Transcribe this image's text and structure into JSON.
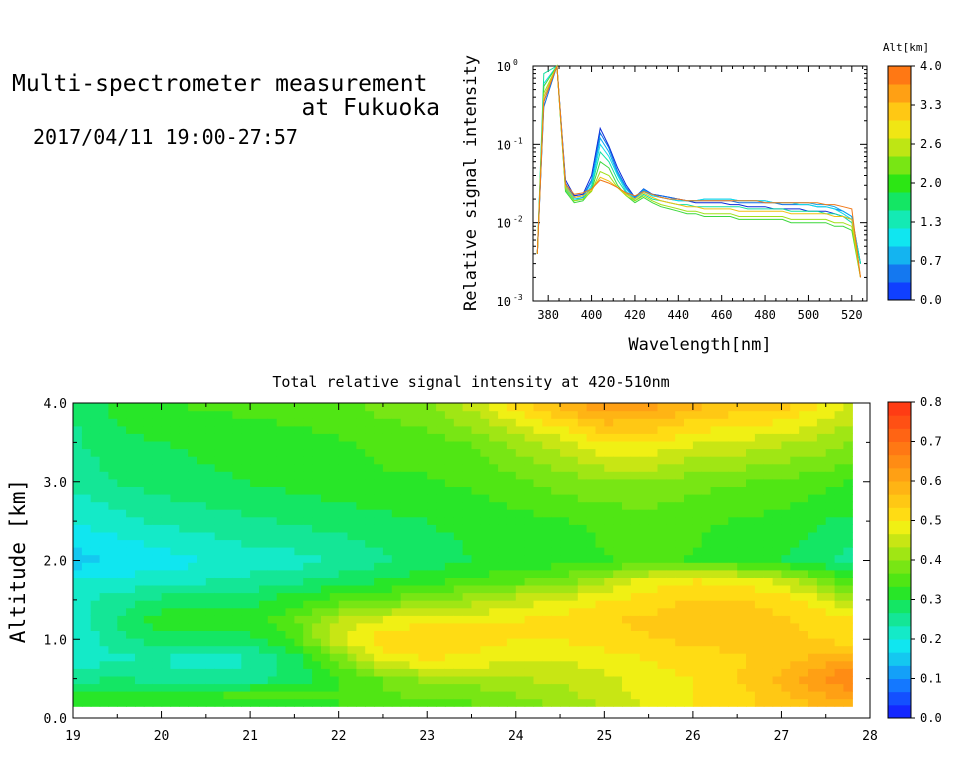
{
  "header": {
    "title_line1": "Multi-spectrometer measurement",
    "title_line2": "at Fukuoka",
    "subtitle": "2017/04/11 19:00-27:57"
  },
  "chart_data": [
    {
      "type": "line",
      "title": "",
      "xlabel": "Wavelength[nm]",
      "ylabel": "Relative signal intensity",
      "xlim": [
        373,
        527
      ],
      "ylim": [
        0.001,
        1
      ],
      "yscale": "log",
      "x_ticks": [
        380,
        400,
        420,
        440,
        460,
        480,
        500,
        520
      ],
      "y_ticks": [
        {
          "value": 0.001,
          "base": "10",
          "exp": "-3"
        },
        {
          "value": 0.01,
          "base": "10",
          "exp": "-2"
        },
        {
          "value": 0.1,
          "base": "10",
          "exp": "-1"
        },
        {
          "value": 1,
          "base": "10",
          "exp": "0"
        }
      ],
      "x": [
        375,
        378,
        384,
        388,
        392,
        396,
        400,
        404,
        408,
        412,
        416,
        420,
        424,
        428,
        432,
        436,
        440,
        444,
        448,
        452,
        456,
        460,
        464,
        468,
        472,
        476,
        480,
        484,
        488,
        492,
        496,
        500,
        504,
        508,
        512,
        516,
        520,
        524
      ],
      "series": [
        {
          "color": "#0a2ad8",
          "values": [
            0.004,
            0.35,
            1.0,
            0.035,
            0.022,
            0.023,
            0.04,
            0.16,
            0.095,
            0.05,
            0.03,
            0.021,
            0.027,
            0.023,
            0.022,
            0.021,
            0.02,
            0.019,
            0.018,
            0.018,
            0.018,
            0.018,
            0.017,
            0.017,
            0.016,
            0.016,
            0.016,
            0.015,
            0.015,
            0.015,
            0.015,
            0.014,
            0.014,
            0.014,
            0.013,
            0.012,
            0.011,
            0.003
          ]
        },
        {
          "color": "#0a6ee8",
          "values": [
            0.004,
            0.3,
            1.0,
            0.032,
            0.021,
            0.022,
            0.035,
            0.14,
            0.09,
            0.045,
            0.028,
            0.021,
            0.027,
            0.023,
            0.022,
            0.021,
            0.02,
            0.019,
            0.019,
            0.019,
            0.019,
            0.019,
            0.019,
            0.018,
            0.018,
            0.018,
            0.018,
            0.018,
            0.017,
            0.017,
            0.017,
            0.017,
            0.016,
            0.016,
            0.015,
            0.014,
            0.012,
            0.003
          ]
        },
        {
          "color": "#0aa8f0",
          "values": [
            0.004,
            0.4,
            1.0,
            0.03,
            0.02,
            0.021,
            0.033,
            0.12,
            0.08,
            0.042,
            0.027,
            0.02,
            0.026,
            0.022,
            0.021,
            0.02,
            0.019,
            0.019,
            0.019,
            0.02,
            0.02,
            0.02,
            0.02,
            0.019,
            0.019,
            0.019,
            0.019,
            0.018,
            0.018,
            0.018,
            0.018,
            0.018,
            0.017,
            0.017,
            0.016,
            0.014,
            0.012,
            0.003
          ]
        },
        {
          "color": "#10dcea",
          "values": [
            0.004,
            0.6,
            1.0,
            0.028,
            0.02,
            0.02,
            0.03,
            0.1,
            0.07,
            0.04,
            0.025,
            0.02,
            0.025,
            0.022,
            0.021,
            0.02,
            0.019,
            0.019,
            0.019,
            0.02,
            0.02,
            0.02,
            0.02,
            0.019,
            0.019,
            0.019,
            0.019,
            0.018,
            0.018,
            0.018,
            0.017,
            0.017,
            0.016,
            0.016,
            0.015,
            0.013,
            0.011,
            0.003
          ]
        },
        {
          "color": "#14e0a0",
          "values": [
            0.004,
            0.8,
            1.0,
            0.026,
            0.019,
            0.02,
            0.028,
            0.08,
            0.06,
            0.035,
            0.024,
            0.019,
            0.023,
            0.02,
            0.019,
            0.018,
            0.017,
            0.017,
            0.016,
            0.016,
            0.016,
            0.016,
            0.016,
            0.016,
            0.015,
            0.015,
            0.015,
            0.015,
            0.015,
            0.014,
            0.014,
            0.014,
            0.014,
            0.013,
            0.013,
            0.012,
            0.01,
            0.003
          ]
        },
        {
          "color": "#3cd83c",
          "values": [
            0.004,
            0.55,
            1.0,
            0.025,
            0.018,
            0.019,
            0.026,
            0.06,
            0.05,
            0.03,
            0.022,
            0.018,
            0.021,
            0.018,
            0.016,
            0.015,
            0.014,
            0.013,
            0.013,
            0.012,
            0.012,
            0.012,
            0.012,
            0.011,
            0.011,
            0.011,
            0.011,
            0.011,
            0.011,
            0.01,
            0.01,
            0.01,
            0.01,
            0.01,
            0.009,
            0.009,
            0.008,
            0.002
          ]
        },
        {
          "color": "#a0e018",
          "values": [
            0.004,
            0.45,
            1.0,
            0.027,
            0.019,
            0.02,
            0.025,
            0.045,
            0.04,
            0.028,
            0.022,
            0.019,
            0.022,
            0.019,
            0.017,
            0.016,
            0.015,
            0.014,
            0.014,
            0.013,
            0.013,
            0.013,
            0.013,
            0.012,
            0.012,
            0.012,
            0.012,
            0.012,
            0.012,
            0.011,
            0.011,
            0.011,
            0.011,
            0.011,
            0.01,
            0.01,
            0.009,
            0.002
          ]
        },
        {
          "color": "#f0c010",
          "values": [
            0.004,
            0.4,
            1.0,
            0.029,
            0.021,
            0.022,
            0.026,
            0.038,
            0.034,
            0.028,
            0.023,
            0.02,
            0.024,
            0.021,
            0.019,
            0.018,
            0.017,
            0.016,
            0.016,
            0.015,
            0.015,
            0.015,
            0.015,
            0.014,
            0.014,
            0.014,
            0.014,
            0.014,
            0.014,
            0.013,
            0.013,
            0.013,
            0.013,
            0.013,
            0.012,
            0.012,
            0.011,
            0.002
          ]
        },
        {
          "color": "#f07818",
          "values": [
            0.004,
            0.35,
            1.0,
            0.031,
            0.023,
            0.024,
            0.027,
            0.035,
            0.032,
            0.028,
            0.024,
            0.022,
            0.025,
            0.023,
            0.021,
            0.02,
            0.02,
            0.019,
            0.019,
            0.019,
            0.019,
            0.019,
            0.019,
            0.019,
            0.019,
            0.019,
            0.018,
            0.018,
            0.018,
            0.018,
            0.018,
            0.018,
            0.018,
            0.017,
            0.017,
            0.016,
            0.015,
            0.002
          ]
        }
      ]
    },
    {
      "type": "heatmap",
      "title": "Total relative signal intensity at 420-510nm",
      "xlabel": "",
      "ylabel": "Altitude [km]",
      "xlim": [
        19,
        28
      ],
      "ylim": [
        0,
        4
      ],
      "x_ticks": [
        19,
        20,
        21,
        22,
        23,
        24,
        25,
        26,
        27,
        28
      ],
      "y_ticks": [
        "0.0",
        "1.0",
        "2.0",
        "3.0",
        "4.0"
      ],
      "data_x_range": [
        19.0,
        27.8
      ],
      "data_y_range": [
        0.15,
        4.0
      ],
      "grid": {
        "x": [
          19.0,
          19.5,
          20.0,
          20.5,
          21.0,
          21.5,
          22.0,
          22.5,
          23.0,
          23.5,
          24.0,
          24.5,
          25.0,
          25.5,
          26.0,
          26.5,
          27.0,
          27.5,
          27.8
        ],
        "y": [
          0.15,
          0.3,
          0.5,
          0.75,
          1.0,
          1.25,
          1.5,
          1.75,
          2.0,
          2.5,
          3.0,
          3.5,
          4.0
        ],
        "z": [
          [
            0.33,
            0.33,
            0.32,
            0.32,
            0.33,
            0.33,
            0.33,
            0.34,
            0.35,
            0.36,
            0.38,
            0.4,
            0.43,
            0.47,
            0.5,
            0.52,
            0.55,
            0.57,
            0.58
          ],
          [
            0.3,
            0.32,
            0.33,
            0.33,
            0.34,
            0.34,
            0.34,
            0.36,
            0.38,
            0.38,
            0.4,
            0.42,
            0.45,
            0.48,
            0.5,
            0.52,
            0.56,
            0.6,
            0.62
          ],
          [
            0.25,
            0.27,
            0.25,
            0.24,
            0.25,
            0.28,
            0.33,
            0.37,
            0.41,
            0.42,
            0.43,
            0.44,
            0.46,
            0.48,
            0.5,
            0.53,
            0.58,
            0.64,
            0.67
          ],
          [
            0.21,
            0.23,
            0.23,
            0.22,
            0.23,
            0.28,
            0.38,
            0.48,
            0.5,
            0.49,
            0.47,
            0.47,
            0.48,
            0.5,
            0.52,
            0.53,
            0.55,
            0.58,
            0.6
          ],
          [
            0.2,
            0.25,
            0.29,
            0.28,
            0.29,
            0.34,
            0.46,
            0.52,
            0.54,
            0.52,
            0.5,
            0.5,
            0.52,
            0.53,
            0.54,
            0.54,
            0.54,
            0.53,
            0.52
          ],
          [
            0.21,
            0.27,
            0.32,
            0.32,
            0.32,
            0.36,
            0.44,
            0.47,
            0.49,
            0.49,
            0.5,
            0.51,
            0.53,
            0.54,
            0.55,
            0.55,
            0.54,
            0.52,
            0.5
          ],
          [
            0.22,
            0.25,
            0.28,
            0.28,
            0.29,
            0.32,
            0.35,
            0.37,
            0.4,
            0.42,
            0.45,
            0.47,
            0.5,
            0.52,
            0.54,
            0.54,
            0.52,
            0.47,
            0.42
          ],
          [
            0.2,
            0.21,
            0.22,
            0.23,
            0.24,
            0.26,
            0.28,
            0.3,
            0.32,
            0.34,
            0.36,
            0.38,
            0.43,
            0.48,
            0.5,
            0.49,
            0.46,
            0.38,
            0.33
          ],
          [
            0.15,
            0.17,
            0.18,
            0.2,
            0.22,
            0.22,
            0.24,
            0.26,
            0.28,
            0.3,
            0.31,
            0.32,
            0.33,
            0.34,
            0.33,
            0.32,
            0.3,
            0.27,
            0.25
          ],
          [
            0.2,
            0.22,
            0.24,
            0.25,
            0.26,
            0.27,
            0.28,
            0.29,
            0.3,
            0.31,
            0.32,
            0.33,
            0.34,
            0.35,
            0.34,
            0.33,
            0.32,
            0.3,
            0.29
          ],
          [
            0.24,
            0.27,
            0.28,
            0.29,
            0.3,
            0.31,
            0.32,
            0.33,
            0.33,
            0.34,
            0.36,
            0.38,
            0.4,
            0.4,
            0.38,
            0.37,
            0.36,
            0.34,
            0.33
          ],
          [
            0.26,
            0.29,
            0.3,
            0.31,
            0.32,
            0.32,
            0.33,
            0.34,
            0.35,
            0.37,
            0.41,
            0.45,
            0.5,
            0.5,
            0.47,
            0.46,
            0.44,
            0.42,
            0.4
          ],
          [
            0.27,
            0.31,
            0.33,
            0.34,
            0.34,
            0.35,
            0.36,
            0.38,
            0.4,
            0.45,
            0.52,
            0.58,
            0.63,
            0.62,
            0.58,
            0.56,
            0.55,
            0.5,
            0.46
          ]
        ]
      }
    }
  ],
  "colorbars": [
    {
      "title": "Alt[km]",
      "labels": [
        "4.0",
        "3.3",
        "2.6",
        "2.0",
        "1.3",
        "0.7",
        "0.0"
      ],
      "colors": [
        "#1040ff",
        "#1478f0",
        "#14b4f0",
        "#10e6f0",
        "#14eab4",
        "#14e664",
        "#2ce614",
        "#78e614",
        "#bee614",
        "#f0e614",
        "#ffc814",
        "#ffa014",
        "#ff7814"
      ]
    },
    {
      "title": "",
      "labels": [
        "0.8",
        "0.7",
        "0.6",
        "0.5",
        "0.4",
        "0.3",
        "0.2",
        "0.1",
        "0.0"
      ],
      "colors": [
        "#1428ff",
        "#1450ff",
        "#1478ff",
        "#14a0f8",
        "#14c8f0",
        "#10e6f0",
        "#14eac8",
        "#14e696",
        "#14e664",
        "#28e628",
        "#50e614",
        "#78e614",
        "#a0e614",
        "#c8e614",
        "#f0f014",
        "#ffdc14",
        "#ffc814",
        "#ffb414",
        "#ffa014",
        "#ff8c14",
        "#ff7814",
        "#ff6414",
        "#ff5014",
        "#ff3c14"
      ]
    }
  ]
}
